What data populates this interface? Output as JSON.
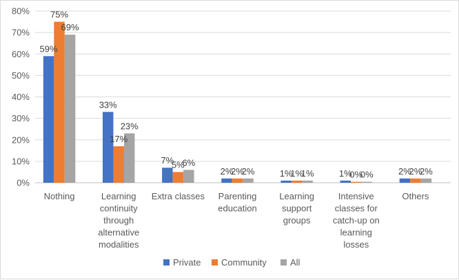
{
  "chart_data": {
    "type": "bar",
    "title": "",
    "xlabel": "",
    "ylabel": "",
    "ylim": [
      0,
      80
    ],
    "yticks": [
      "0%",
      "10%",
      "20%",
      "30%",
      "40%",
      "50%",
      "60%",
      "70%",
      "80%"
    ],
    "grid": true,
    "legend_position": "bottom",
    "categories": [
      [
        "Nothing"
      ],
      [
        "Learning",
        "continuity",
        "through",
        "alternative",
        "modalities"
      ],
      [
        "Extra classes"
      ],
      [
        "Parenting",
        "education"
      ],
      [
        "Learning",
        "support",
        "groups"
      ],
      [
        "Intensive",
        "classes for",
        "catch-up on",
        "learning",
        "losses"
      ],
      [
        "Others"
      ]
    ],
    "series": [
      {
        "name": "Private",
        "color": "#4472C4",
        "values": [
          59,
          33,
          7,
          2,
          1,
          1,
          2
        ],
        "labels": [
          "59%",
          "33%",
          "7%",
          "2%",
          "1%",
          "1%",
          "2%"
        ]
      },
      {
        "name": "Community",
        "color": "#ED7D31",
        "values": [
          75,
          17,
          5,
          2,
          1,
          0,
          2
        ],
        "labels": [
          "75%",
          "17%",
          "5%",
          "2%",
          "1%",
          "0%",
          "2%"
        ]
      },
      {
        "name": "All",
        "color": "#A5A5A5",
        "values": [
          69,
          23,
          6,
          2,
          1,
          0,
          2
        ],
        "labels": [
          "69%",
          "23%",
          "6%",
          "2%",
          "1%",
          "0%",
          "2%"
        ]
      }
    ]
  }
}
